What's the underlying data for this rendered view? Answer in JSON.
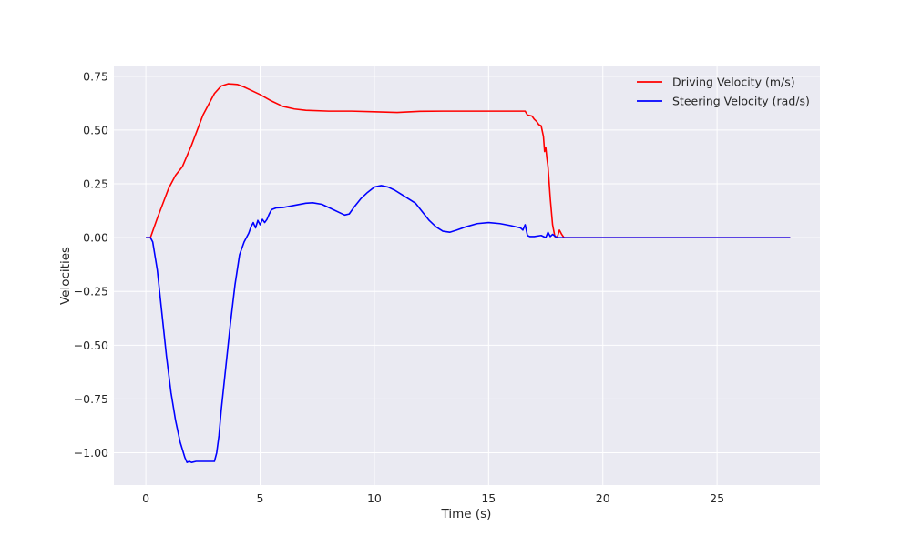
{
  "chart_data": {
    "type": "line",
    "title": "",
    "xlabel": "Time (s)",
    "ylabel": "Velocities",
    "xlim": [
      -1.4,
      29.5
    ],
    "ylim": [
      -1.15,
      0.8
    ],
    "xticks": [
      0,
      5,
      10,
      15,
      20,
      25
    ],
    "yticks": [
      0.75,
      0.5,
      0.25,
      0.0,
      -0.25,
      -0.5,
      -0.75,
      -1.0
    ],
    "ytick_labels": [
      "0.75",
      "0.50",
      "0.25",
      "0.00",
      "−0.25",
      "−0.50",
      "−0.75",
      "−1.00"
    ],
    "grid": true,
    "background": "#eaeaf2",
    "legend_position": "top-right",
    "series": [
      {
        "name": "Driving Velocity (m/s)",
        "color": "#ff0000",
        "x": [
          0,
          0.2,
          0.5,
          1.0,
          1.3,
          1.6,
          2.0,
          2.5,
          3.0,
          3.3,
          3.6,
          4.0,
          4.3,
          4.6,
          5.0,
          5.5,
          6.0,
          6.5,
          7.0,
          8.0,
          9.0,
          10.0,
          11.0,
          12.0,
          13.0,
          14.0,
          15.0,
          16.0,
          16.6,
          16.7,
          16.9,
          17.0,
          17.1,
          17.2,
          17.3,
          17.4,
          17.45,
          17.5,
          17.55,
          17.6,
          17.7,
          17.8,
          17.9,
          18.0,
          18.1,
          18.2,
          18.3,
          18.5,
          19.0,
          20.0,
          25.0,
          28.2
        ],
        "y": [
          0,
          0,
          0.09,
          0.23,
          0.29,
          0.33,
          0.43,
          0.57,
          0.67,
          0.705,
          0.715,
          0.712,
          0.7,
          0.685,
          0.665,
          0.635,
          0.61,
          0.598,
          0.592,
          0.588,
          0.588,
          0.585,
          0.582,
          0.587,
          0.588,
          0.588,
          0.588,
          0.588,
          0.588,
          0.57,
          0.565,
          0.55,
          0.54,
          0.525,
          0.52,
          0.47,
          0.4,
          0.42,
          0.37,
          0.33,
          0.18,
          0.06,
          0.005,
          0.0,
          0.035,
          0.015,
          0.0,
          0.0,
          0.0,
          0.0,
          0.0,
          0.0
        ]
      },
      {
        "name": "Steering Velocity (rad/s)",
        "color": "#0000ff",
        "x": [
          0,
          0.2,
          0.3,
          0.5,
          0.7,
          0.9,
          1.1,
          1.3,
          1.5,
          1.7,
          1.8,
          1.9,
          2.0,
          2.2,
          2.5,
          2.8,
          3.0,
          3.1,
          3.2,
          3.3,
          3.5,
          3.7,
          3.9,
          4.1,
          4.3,
          4.5,
          4.6,
          4.7,
          4.8,
          4.9,
          5.0,
          5.1,
          5.2,
          5.3,
          5.4,
          5.5,
          5.7,
          6.0,
          6.5,
          7.0,
          7.3,
          7.7,
          8.0,
          8.5,
          8.7,
          8.9,
          9.1,
          9.4,
          9.7,
          10.0,
          10.3,
          10.6,
          10.9,
          11.2,
          11.5,
          11.8,
          12.1,
          12.4,
          12.7,
          13.0,
          13.3,
          13.6,
          14.0,
          14.5,
          15.0,
          15.5,
          16.0,
          16.4,
          16.5,
          16.6,
          16.7,
          16.8,
          17.0,
          17.3,
          17.5,
          17.6,
          17.7,
          17.8,
          18.0,
          18.5,
          19.0,
          20.0,
          25.0,
          28.2
        ],
        "y": [
          0,
          0,
          -0.02,
          -0.15,
          -0.35,
          -0.55,
          -0.72,
          -0.85,
          -0.95,
          -1.02,
          -1.045,
          -1.04,
          -1.045,
          -1.04,
          -1.04,
          -1.04,
          -1.04,
          -1.0,
          -0.92,
          -0.8,
          -0.6,
          -0.4,
          -0.22,
          -0.08,
          -0.02,
          0.02,
          0.05,
          0.07,
          0.045,
          0.08,
          0.06,
          0.085,
          0.07,
          0.085,
          0.11,
          0.13,
          0.138,
          0.14,
          0.15,
          0.16,
          0.162,
          0.155,
          0.14,
          0.115,
          0.105,
          0.11,
          0.14,
          0.18,
          0.21,
          0.235,
          0.242,
          0.235,
          0.22,
          0.2,
          0.18,
          0.16,
          0.12,
          0.08,
          0.05,
          0.03,
          0.025,
          0.035,
          0.05,
          0.065,
          0.07,
          0.065,
          0.055,
          0.045,
          0.035,
          0.06,
          0.01,
          0.005,
          0.005,
          0.01,
          0.0,
          0.025,
          0.005,
          0.015,
          0.0,
          0.0,
          0.0,
          0.0,
          0.0,
          0.0
        ]
      }
    ]
  }
}
